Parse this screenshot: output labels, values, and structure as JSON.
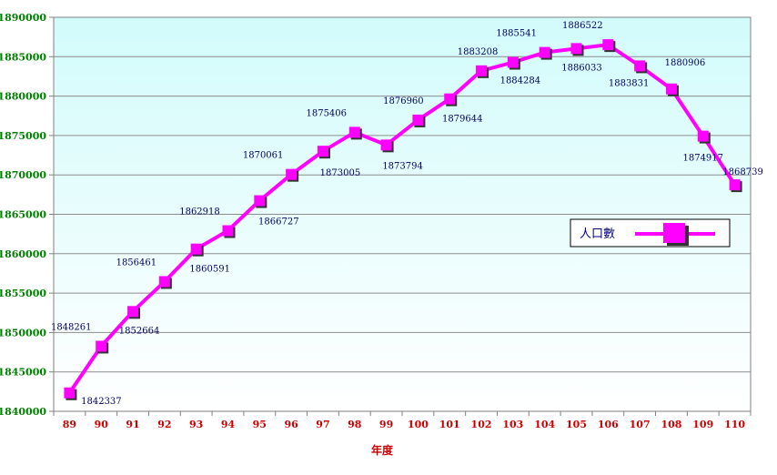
{
  "chart_data": {
    "type": "line",
    "title": "",
    "xlabel": "年度",
    "ylabel": "",
    "ylim": [
      1840000,
      1890000
    ],
    "yticks": [
      "1840000",
      "1845000",
      "1850000",
      "1855000",
      "1860000",
      "1865000",
      "1870000",
      "1875000",
      "1880000",
      "1885000",
      "1890000"
    ],
    "categories": [
      "89",
      "90",
      "91",
      "92",
      "93",
      "94",
      "95",
      "96",
      "97",
      "98",
      "99",
      "100",
      "101",
      "102",
      "103",
      "104",
      "105",
      "106",
      "107",
      "108",
      "109",
      "110"
    ],
    "series": [
      {
        "name": "人口數",
        "color": "#ff00ff",
        "values": [
          1842337,
          1848261,
          1852664,
          1856461,
          1860591,
          1862918,
          1866727,
          1870061,
          1873005,
          1875406,
          1873794,
          1876960,
          1879644,
          1883208,
          1884284,
          1885541,
          1886033,
          1886522,
          1883831,
          1880906,
          1874917,
          1868739
        ]
      }
    ],
    "legend_position": "right",
    "grid": true,
    "plot_background": "gradient cyan"
  }
}
